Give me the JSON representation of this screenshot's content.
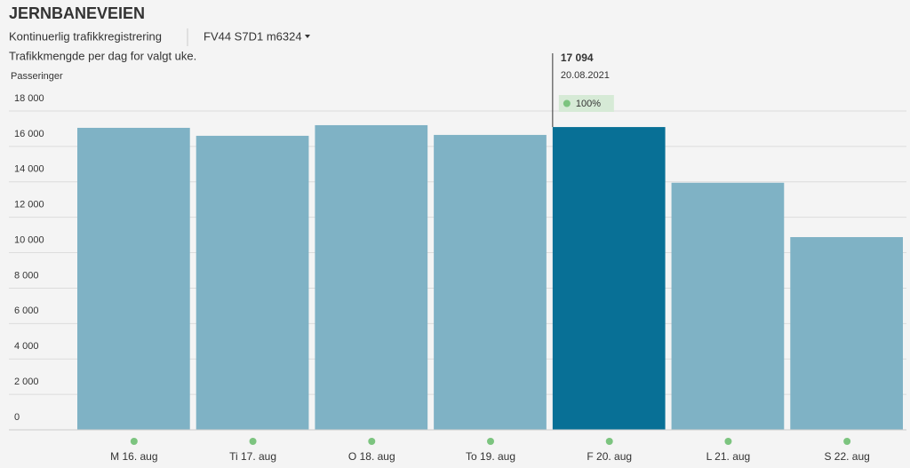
{
  "header": {
    "title": "JERNBANEVEIEN",
    "subtitle": "Kontinuerlig trafikkregistrering",
    "selector": "FV44 S7D1 m6324"
  },
  "chart_data": {
    "type": "bar",
    "title": "Trafikkmengde per dag for valgt uke.",
    "ylabel": "Passeringer",
    "categories": [
      "M 16. aug",
      "Ti 17. aug",
      "O 18. aug",
      "To 19. aug",
      "F 20. aug",
      "L 21. aug",
      "S 22. aug"
    ],
    "values": [
      17050,
      16600,
      17200,
      16650,
      17094,
      13950,
      10880
    ],
    "value_labels": [
      null,
      null,
      null,
      null,
      "17 094",
      null,
      null
    ],
    "colors": [
      "#7fb2c5",
      "#7fb2c5",
      "#7fb2c5",
      "#7fb2c5",
      "#087096",
      "#7fb2c5",
      "#7fb2c5"
    ],
    "tooltip": {
      "date": "20.08.2021",
      "coverage": "100%"
    },
    "ylim": [
      0,
      18000
    ],
    "yticks": [
      0,
      {
        "value": 2000,
        "label": "2 000"
      },
      {
        "value": 4000,
        "label": "4 000"
      },
      {
        "value": 6000,
        "label": "6 000"
      },
      {
        "value": 8000,
        "label": "8 000"
      },
      {
        "value": 10000,
        "label": "10 000"
      },
      {
        "value": 12000,
        "label": "12 000"
      },
      {
        "value": 14000,
        "label": "14 000"
      },
      {
        "value": 16000,
        "label": "16 000"
      },
      {
        "value": 18000,
        "label": "18 000"
      }
    ],
    "grid": true
  }
}
